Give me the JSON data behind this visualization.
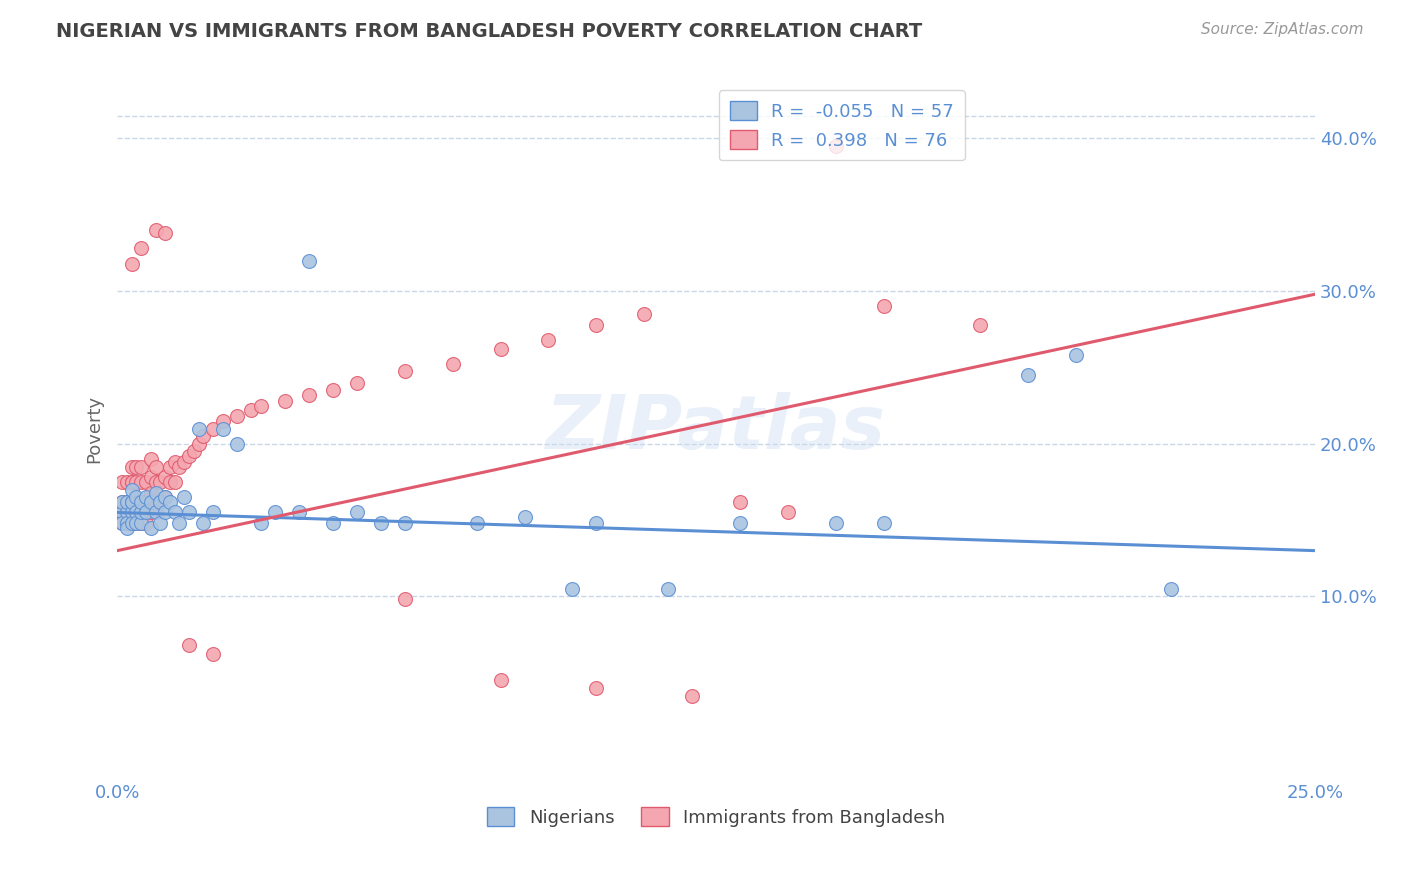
{
  "title": "NIGERIAN VS IMMIGRANTS FROM BANGLADESH POVERTY CORRELATION CHART",
  "source": "Source: ZipAtlas.com",
  "ylabel": "Poverty",
  "xlim": [
    0.0,
    0.25
  ],
  "ylim": [
    -0.02,
    0.44
  ],
  "yticks": [
    0.1,
    0.2,
    0.3,
    0.4
  ],
  "yticklabels": [
    "10.0%",
    "20.0%",
    "30.0%",
    "40.0%"
  ],
  "blue_R": -0.055,
  "blue_N": 57,
  "pink_R": 0.398,
  "pink_N": 76,
  "blue_color": "#aac4e0",
  "pink_color": "#f4a7b0",
  "blue_line_color": "#5b8fd4",
  "pink_line_color": "#e05a6e",
  "legend_label_blue": "Nigerians",
  "legend_label_pink": "Immigrants from Bangladesh",
  "watermark": "ZIPatlas",
  "background_color": "#ffffff",
  "grid_color": "#c8d8e8",
  "title_color": "#444444",
  "axis_color": "#5b8fd4",
  "blue_trend_x": [
    0.0,
    0.25
  ],
  "blue_trend_y": [
    0.155,
    0.13
  ],
  "pink_trend_x": [
    0.0,
    0.25
  ],
  "pink_trend_y": [
    0.13,
    0.298
  ],
  "blue_x": [
    0.001,
    0.001,
    0.001,
    0.002,
    0.002,
    0.002,
    0.002,
    0.003,
    0.003,
    0.003,
    0.003,
    0.003,
    0.004,
    0.004,
    0.004,
    0.005,
    0.005,
    0.005,
    0.006,
    0.006,
    0.007,
    0.007,
    0.008,
    0.008,
    0.009,
    0.009,
    0.01,
    0.01,
    0.011,
    0.012,
    0.013,
    0.014,
    0.015,
    0.017,
    0.018,
    0.02,
    0.022,
    0.025,
    0.03,
    0.033,
    0.038,
    0.045,
    0.05,
    0.055,
    0.06,
    0.075,
    0.085,
    0.095,
    0.1,
    0.115,
    0.13,
    0.15,
    0.16,
    0.19,
    0.2,
    0.22,
    0.04
  ],
  "blue_y": [
    0.155,
    0.148,
    0.162,
    0.155,
    0.148,
    0.162,
    0.145,
    0.162,
    0.155,
    0.148,
    0.162,
    0.17,
    0.155,
    0.148,
    0.165,
    0.148,
    0.155,
    0.162,
    0.165,
    0.155,
    0.162,
    0.145,
    0.155,
    0.168,
    0.148,
    0.162,
    0.155,
    0.165,
    0.162,
    0.155,
    0.148,
    0.165,
    0.155,
    0.21,
    0.148,
    0.155,
    0.21,
    0.2,
    0.148,
    0.155,
    0.155,
    0.148,
    0.155,
    0.148,
    0.148,
    0.148,
    0.152,
    0.105,
    0.148,
    0.105,
    0.148,
    0.148,
    0.148,
    0.245,
    0.258,
    0.105,
    0.32
  ],
  "pink_x": [
    0.001,
    0.001,
    0.001,
    0.001,
    0.002,
    0.002,
    0.002,
    0.002,
    0.002,
    0.003,
    0.003,
    0.003,
    0.003,
    0.003,
    0.004,
    0.004,
    0.004,
    0.004,
    0.005,
    0.005,
    0.005,
    0.005,
    0.006,
    0.006,
    0.006,
    0.007,
    0.007,
    0.007,
    0.007,
    0.008,
    0.008,
    0.008,
    0.009,
    0.009,
    0.01,
    0.01,
    0.011,
    0.011,
    0.012,
    0.012,
    0.013,
    0.014,
    0.015,
    0.016,
    0.017,
    0.018,
    0.02,
    0.022,
    0.025,
    0.028,
    0.03,
    0.035,
    0.04,
    0.045,
    0.05,
    0.06,
    0.07,
    0.08,
    0.09,
    0.1,
    0.11,
    0.13,
    0.15,
    0.16,
    0.003,
    0.005,
    0.008,
    0.01,
    0.015,
    0.02,
    0.06,
    0.08,
    0.1,
    0.12,
    0.14,
    0.18
  ],
  "pink_y": [
    0.155,
    0.148,
    0.162,
    0.175,
    0.148,
    0.162,
    0.175,
    0.148,
    0.162,
    0.175,
    0.185,
    0.148,
    0.162,
    0.175,
    0.148,
    0.162,
    0.175,
    0.185,
    0.148,
    0.162,
    0.175,
    0.185,
    0.148,
    0.162,
    0.175,
    0.155,
    0.168,
    0.178,
    0.19,
    0.162,
    0.175,
    0.185,
    0.162,
    0.175,
    0.165,
    0.178,
    0.175,
    0.185,
    0.175,
    0.188,
    0.185,
    0.188,
    0.192,
    0.195,
    0.2,
    0.205,
    0.21,
    0.215,
    0.218,
    0.222,
    0.225,
    0.228,
    0.232,
    0.235,
    0.24,
    0.248,
    0.252,
    0.262,
    0.268,
    0.278,
    0.285,
    0.162,
    0.395,
    0.29,
    0.318,
    0.328,
    0.34,
    0.338,
    0.068,
    0.062,
    0.098,
    0.045,
    0.04,
    0.035,
    0.155,
    0.278
  ]
}
